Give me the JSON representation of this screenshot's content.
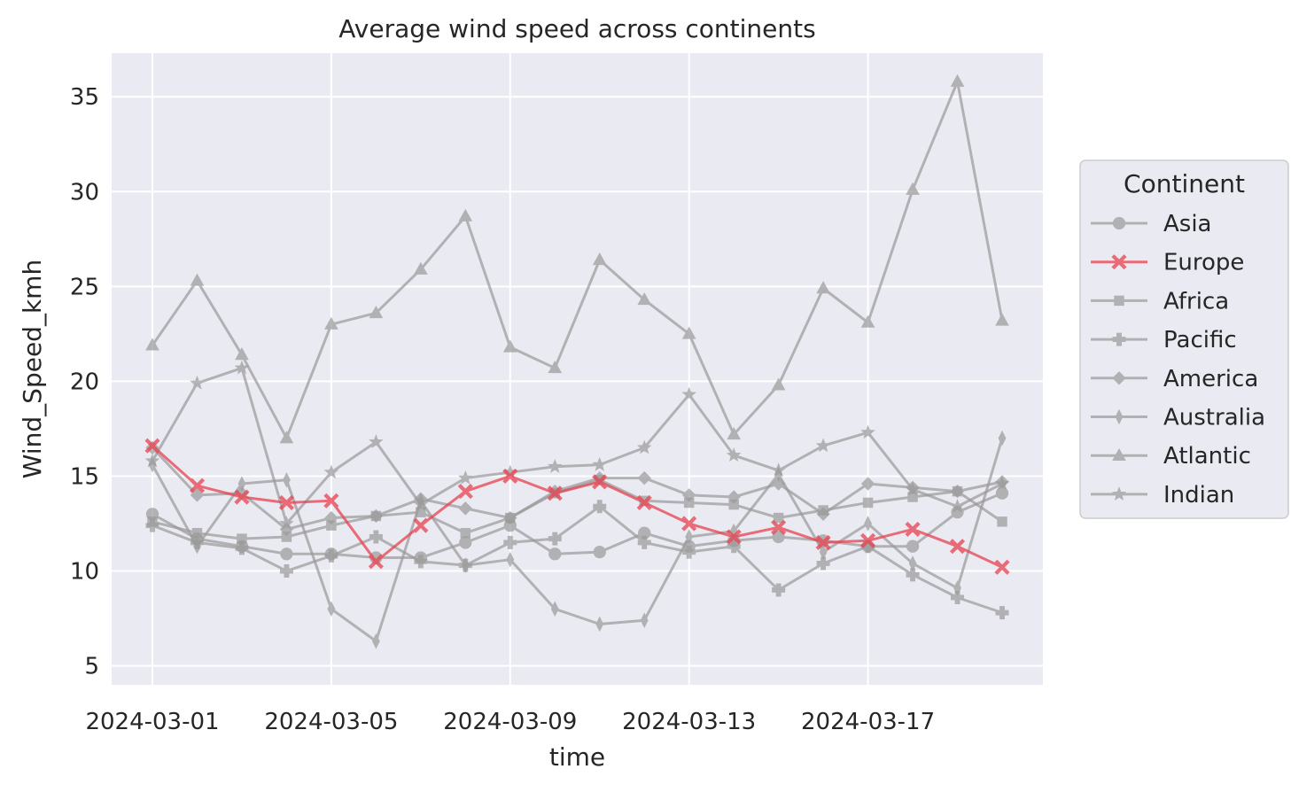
{
  "chart_data": {
    "type": "line",
    "title": "Average wind speed across continents",
    "xlabel": "time",
    "ylabel": "Wind_Speed_kmh",
    "x": [
      "2024-03-01",
      "2024-03-02",
      "2024-03-03",
      "2024-03-04",
      "2024-03-05",
      "2024-03-06",
      "2024-03-07",
      "2024-03-08",
      "2024-03-09",
      "2024-03-10",
      "2024-03-11",
      "2024-03-12",
      "2024-03-13",
      "2024-03-14",
      "2024-03-15",
      "2024-03-16",
      "2024-03-17",
      "2024-03-18",
      "2024-03-19",
      "2024-03-20"
    ],
    "x_ticks": [
      "2024-03-01",
      "2024-03-05",
      "2024-03-09",
      "2024-03-13",
      "2024-03-17"
    ],
    "ylim": [
      4,
      37.3
    ],
    "y_ticks": [
      5,
      10,
      15,
      20,
      25,
      30,
      35
    ],
    "grid": true,
    "legend": {
      "title": "Continent",
      "position": "right"
    },
    "highlight_color": "#e8414e",
    "muted_color": "#9a9a9a",
    "series": [
      {
        "name": "Asia",
        "marker": "circle",
        "highlight": false,
        "values": [
          13.0,
          11.7,
          11.3,
          10.9,
          10.9,
          10.7,
          10.7,
          11.5,
          12.4,
          10.9,
          11.0,
          12.0,
          11.3,
          11.6,
          11.8,
          11.6,
          11.3,
          11.3,
          13.1,
          14.1
        ]
      },
      {
        "name": "Europe",
        "marker": "x",
        "highlight": true,
        "values": [
          16.6,
          14.5,
          13.9,
          13.6,
          13.7,
          10.5,
          12.4,
          14.2,
          15.0,
          14.1,
          14.7,
          13.6,
          12.5,
          11.8,
          12.3,
          11.5,
          11.6,
          12.2,
          11.3,
          10.2
        ]
      },
      {
        "name": "Africa",
        "marker": "square",
        "highlight": false,
        "values": [
          12.6,
          12.0,
          11.7,
          11.8,
          12.4,
          12.9,
          13.1,
          12.0,
          12.8,
          14.1,
          14.8,
          13.7,
          13.6,
          13.5,
          12.8,
          13.2,
          13.6,
          13.9,
          14.2,
          12.6
        ]
      },
      {
        "name": "Pacific",
        "marker": "plus",
        "highlight": false,
        "values": [
          12.4,
          11.5,
          11.2,
          10.0,
          10.8,
          11.8,
          10.5,
          10.3,
          11.5,
          11.7,
          13.4,
          11.5,
          11.0,
          11.3,
          9.0,
          10.4,
          11.3,
          9.8,
          8.6,
          7.8
        ]
      },
      {
        "name": "America",
        "marker": "diamond",
        "highlight": false,
        "values": [
          16.5,
          14.0,
          14.1,
          12.2,
          12.8,
          12.9,
          13.8,
          13.3,
          12.8,
          14.2,
          14.9,
          14.9,
          14.0,
          13.9,
          14.6,
          13.0,
          14.6,
          14.4,
          14.2,
          14.7
        ]
      },
      {
        "name": "Australia",
        "marker": "thin_diamond",
        "highlight": false,
        "values": [
          15.6,
          11.3,
          14.6,
          14.8,
          8.0,
          6.3,
          13.7,
          10.3,
          10.6,
          8.0,
          7.2,
          7.4,
          11.8,
          12.1,
          15.1,
          11.0,
          12.5,
          10.4,
          9.1,
          17.0
        ]
      },
      {
        "name": "Atlantic",
        "marker": "triangle",
        "highlight": false,
        "values": [
          21.9,
          25.3,
          21.4,
          17.0,
          23.0,
          23.6,
          25.9,
          28.7,
          21.8,
          20.7,
          26.4,
          24.3,
          22.5,
          17.2,
          19.8,
          24.9,
          23.1,
          30.1,
          35.8,
          23.2
        ]
      },
      {
        "name": "Indian",
        "marker": "star",
        "highlight": false,
        "values": [
          15.8,
          19.9,
          20.7,
          12.5,
          15.2,
          16.8,
          13.5,
          14.9,
          15.2,
          15.5,
          15.6,
          16.5,
          19.3,
          16.1,
          15.3,
          16.6,
          17.3,
          14.3,
          13.4,
          14.6
        ]
      }
    ]
  }
}
